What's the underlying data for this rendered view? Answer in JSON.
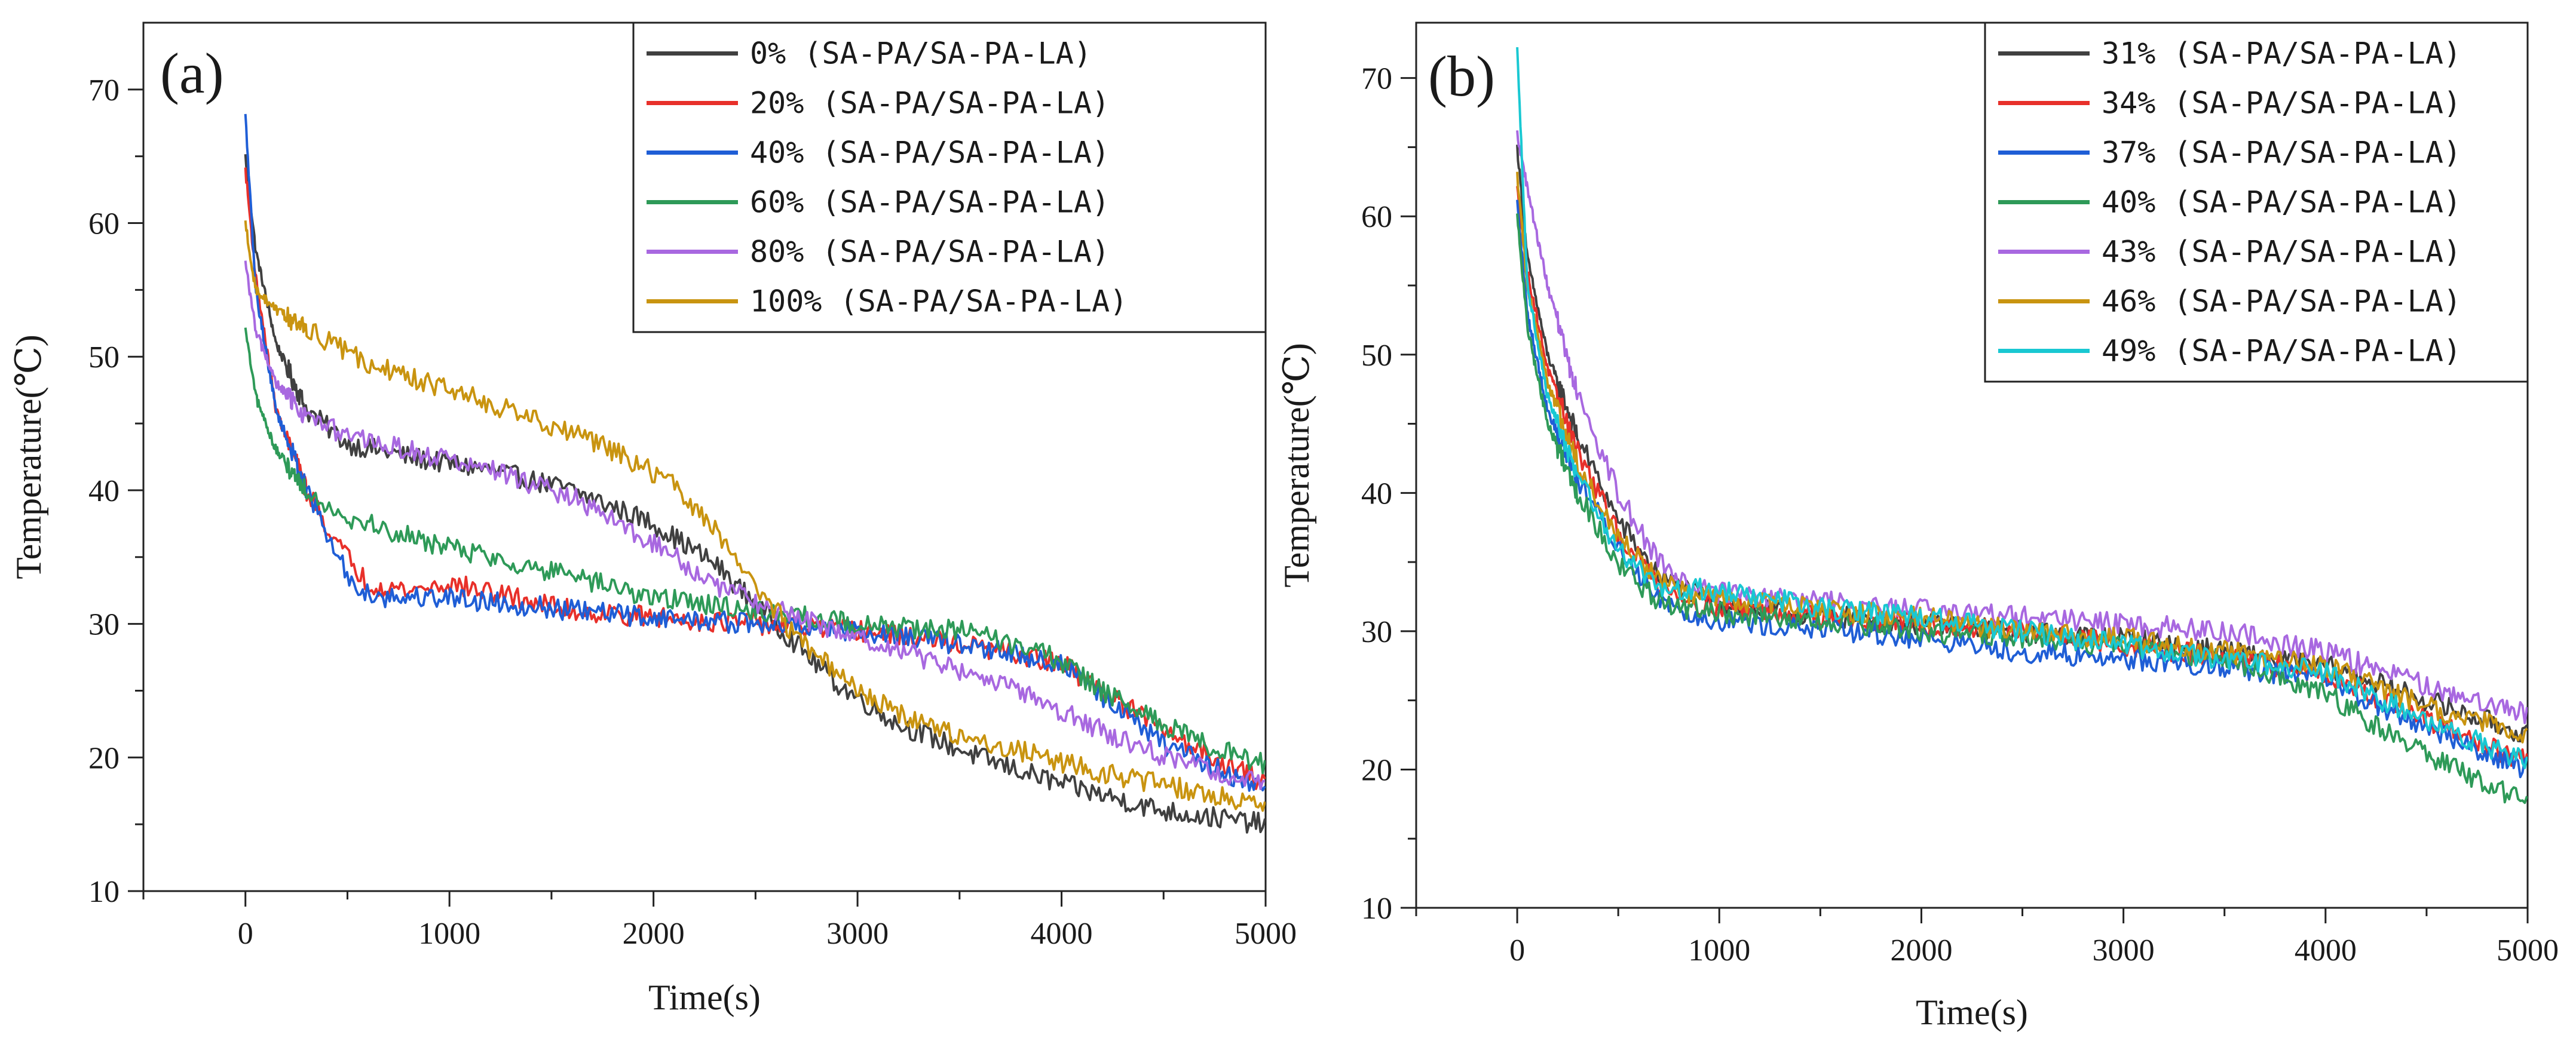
{
  "chart_data": [
    {
      "type": "line",
      "panel_label": "(a)",
      "xlabel": "Time(s)",
      "ylabel": "Temperature(℃)",
      "xlim": [
        -500,
        5000
      ],
      "ylim": [
        10,
        75
      ],
      "xticks": [
        0,
        1000,
        2000,
        3000,
        4000,
        5000
      ],
      "xtick_labels": [
        "0",
        "1000",
        "2000",
        "3000",
        "4000",
        "5000"
      ],
      "yticks": [
        10,
        20,
        30,
        40,
        50,
        60,
        70
      ],
      "ytick_labels": [
        "10",
        "20",
        "30",
        "40",
        "50",
        "60",
        "70"
      ],
      "legend_position": "top-right",
      "series": [
        {
          "name": "0% (SA-PA/SA-PA-LA)",
          "color": "#404040",
          "x": [
            0,
            50,
            150,
            300,
            500,
            800,
            1200,
            1600,
            2000,
            2300,
            2600,
            2900,
            3200,
            3600,
            4000,
            4500,
            5000
          ],
          "y": [
            65,
            58,
            51,
            46,
            43.5,
            42.5,
            41.5,
            40,
            37.5,
            34.5,
            30,
            25.5,
            22.5,
            20,
            18,
            16,
            15
          ]
        },
        {
          "name": "20% (SA-PA/SA-PA-LA)",
          "color": "#e8302a",
          "x": [
            0,
            50,
            150,
            300,
            450,
            600,
            800,
            1000,
            1300,
            1600,
            2000,
            2500,
            3000,
            3500,
            4000,
            4500,
            5000
          ],
          "y": [
            64,
            56,
            46,
            40,
            36,
            33,
            32.5,
            33,
            32,
            31,
            30.5,
            30,
            29.5,
            28.5,
            27,
            22,
            18
          ]
        },
        {
          "name": "40% (SA-PA/SA-PA-LA)",
          "color": "#1f5ed6",
          "x": [
            0,
            50,
            150,
            300,
            450,
            550,
            700,
            1000,
            1300,
            1600,
            2000,
            2500,
            3000,
            3500,
            4000,
            4500,
            5000
          ],
          "y": [
            68,
            55,
            46,
            40,
            35,
            32.5,
            32,
            32,
            31.5,
            31,
            30.5,
            30,
            29.5,
            28.5,
            27,
            21,
            17.5
          ]
        },
        {
          "name": "60% (SA-PA/SA-PA-LA)",
          "color": "#2e9a58",
          "x": [
            0,
            50,
            150,
            300,
            500,
            800,
            1200,
            1600,
            2000,
            2500,
            3000,
            3500,
            3900,
            4300,
            4700,
            5000
          ],
          "y": [
            52,
            47,
            43,
            40,
            38,
            36.5,
            35,
            33.5,
            32,
            31,
            30,
            29.5,
            28,
            24,
            21,
            19.5
          ]
        },
        {
          "name": "80% (SA-PA/SA-PA-LA)",
          "color": "#a868e0",
          "x": [
            0,
            50,
            150,
            300,
            500,
            800,
            1200,
            1600,
            2000,
            2300,
            2600,
            3000,
            3400,
            3800,
            4200,
            4600,
            5000
          ],
          "y": [
            57,
            52,
            48,
            45.5,
            44,
            43,
            41.5,
            39.5,
            36,
            33,
            31,
            29,
            27,
            25,
            22,
            19.5,
            18
          ]
        },
        {
          "name": "100% (SA-PA/SA-PA-LA)",
          "color": "#c99410",
          "x": [
            0,
            50,
            150,
            300,
            600,
            1000,
            1400,
            1800,
            2100,
            2300,
            2500,
            2700,
            3000,
            3300,
            3800,
            4300,
            5000
          ],
          "y": [
            60,
            55,
            53.5,
            52,
            49.5,
            47.5,
            45.5,
            43,
            40.5,
            37,
            33,
            29,
            25,
            22.5,
            20.5,
            18.5,
            16.5
          ]
        }
      ]
    },
    {
      "type": "line",
      "panel_label": "(b)",
      "xlabel": "Time(s)",
      "ylabel": "Temperature(℃)",
      "xlim": [
        -500,
        5000
      ],
      "ylim": [
        10,
        74
      ],
      "xticks": [
        0,
        1000,
        2000,
        3000,
        4000,
        5000
      ],
      "xtick_labels": [
        "0",
        "1000",
        "2000",
        "3000",
        "4000",
        "5000"
      ],
      "yticks": [
        10,
        20,
        30,
        40,
        50,
        60,
        70
      ],
      "ytick_labels": [
        "10",
        "20",
        "30",
        "40",
        "50",
        "60",
        "70"
      ],
      "legend_position": "top-right",
      "series": [
        {
          "name": "31% (SA-PA/SA-PA-LA)",
          "color": "#404040",
          "x": [
            0,
            50,
            150,
            300,
            500,
            700,
            900,
            1200,
            1600,
            2000,
            2500,
            3000,
            3500,
            4000,
            4500,
            5000
          ],
          "y": [
            65,
            57,
            50,
            44,
            38,
            34,
            32.5,
            31.5,
            31,
            30.5,
            30,
            29.5,
            28.5,
            27.5,
            25,
            22.5
          ]
        },
        {
          "name": "34% (SA-PA/SA-PA-LA)",
          "color": "#e8302a",
          "x": [
            0,
            50,
            150,
            300,
            500,
            700,
            900,
            1200,
            1600,
            2000,
            2500,
            3000,
            3500,
            4000,
            4500,
            5000
          ],
          "y": [
            62,
            56,
            49,
            43,
            37,
            33.5,
            32,
            31.5,
            31,
            30.5,
            30,
            29,
            28,
            27,
            23.5,
            20.5
          ]
        },
        {
          "name": "37% (SA-PA/SA-PA-LA)",
          "color": "#1f5ed6",
          "x": [
            0,
            50,
            150,
            300,
            500,
            700,
            900,
            1200,
            1600,
            2000,
            2500,
            3000,
            3500,
            4000,
            4500,
            5000
          ],
          "y": [
            61,
            53,
            46,
            41,
            36,
            32.5,
            31,
            30.5,
            30,
            29.5,
            28.5,
            28,
            27.5,
            26.5,
            23,
            20
          ]
        },
        {
          "name": "40% (SA-PA/SA-PA-LA)",
          "color": "#2e9a58",
          "x": [
            0,
            50,
            150,
            300,
            500,
            700,
            900,
            1200,
            1600,
            2000,
            2500,
            3000,
            3500,
            4000,
            4500,
            5000
          ],
          "y": [
            60,
            52,
            45,
            40,
            35,
            32,
            31.5,
            31,
            30.5,
            30,
            29.5,
            29,
            28,
            25.5,
            21,
            17.5
          ]
        },
        {
          "name": "43% (SA-PA/SA-PA-LA)",
          "color": "#a868e0",
          "x": [
            0,
            50,
            150,
            300,
            500,
            700,
            900,
            1200,
            1600,
            2000,
            2500,
            3000,
            3500,
            4000,
            4500,
            5000
          ],
          "y": [
            66,
            62,
            55,
            47,
            40,
            35,
            33,
            32.5,
            32,
            31.5,
            31,
            30.5,
            30,
            28.5,
            26,
            24
          ]
        },
        {
          "name": "46% (SA-PA/SA-PA-LA)",
          "color": "#c99410",
          "x": [
            0,
            50,
            150,
            300,
            500,
            700,
            900,
            1200,
            1600,
            2000,
            2500,
            3000,
            3500,
            4000,
            4500,
            5000
          ],
          "y": [
            63,
            55,
            48,
            42,
            37,
            33.5,
            32.5,
            32,
            31.5,
            31,
            30,
            29.5,
            28.5,
            27.5,
            24.5,
            22.5
          ]
        },
        {
          "name": "49% (SA-PA/SA-PA-LA)",
          "color": "#19c8d2",
          "x": [
            0,
            50,
            150,
            300,
            500,
            700,
            900,
            1200,
            1600,
            2000,
            2500,
            3000,
            3500,
            4000,
            4500,
            5000
          ],
          "y": [
            72,
            55,
            47,
            41,
            36,
            33,
            33,
            32.5,
            31.5,
            31,
            30,
            29,
            28,
            27,
            23.5,
            20.5
          ]
        }
      ]
    }
  ]
}
